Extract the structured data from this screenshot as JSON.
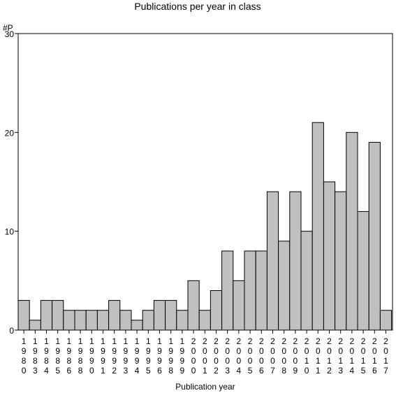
{
  "chart_data": {
    "type": "bar",
    "title": "Publications per year in class",
    "ylabel": "#P",
    "xlabel": "Publication year",
    "ylim": [
      0,
      30
    ],
    "yticks": [
      0,
      10,
      20,
      30
    ],
    "grid": false,
    "legend": "none",
    "bar_color": "#c0c0c0",
    "edge_color": "#000000",
    "categories": [
      "1980",
      "1983",
      "1984",
      "1985",
      "1986",
      "1988",
      "1990",
      "1991",
      "1992",
      "1993",
      "1994",
      "1995",
      "1996",
      "1998",
      "1999",
      "2000",
      "2001",
      "2002",
      "2003",
      "2004",
      "2005",
      "2006",
      "2007",
      "2008",
      "2009",
      "2010",
      "2011",
      "2012",
      "2013",
      "2014",
      "2015",
      "2016",
      "2017"
    ],
    "values": [
      3,
      1,
      3,
      3,
      2,
      2,
      2,
      2,
      3,
      2,
      1,
      2,
      3,
      3,
      2,
      5,
      2,
      4,
      8,
      5,
      8,
      8,
      14,
      9,
      14,
      10,
      21,
      15,
      14,
      20,
      12,
      19,
      2
    ]
  }
}
